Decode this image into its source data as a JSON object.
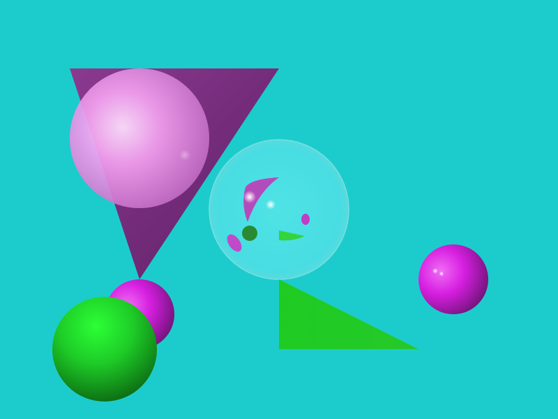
{
  "scene": {
    "background": "#1ccccc",
    "objects": [
      {
        "kind": "triangle",
        "name": "purple-triangle",
        "color": "#7a2c80"
      },
      {
        "kind": "sphere",
        "name": "pink-sphere",
        "color": "#f5a6f5"
      },
      {
        "kind": "sphere",
        "name": "glass-sphere",
        "color": "#5ee8ec"
      },
      {
        "kind": "sphere",
        "name": "magenta-sphere-small",
        "color": "#d61ee0"
      },
      {
        "kind": "sphere",
        "name": "green-sphere",
        "color": "#1fd22a"
      },
      {
        "kind": "triangle",
        "name": "green-triangle",
        "color": "#22cc22"
      },
      {
        "kind": "sphere",
        "name": "magenta-sphere-right",
        "color": "#c81ed2"
      }
    ]
  }
}
